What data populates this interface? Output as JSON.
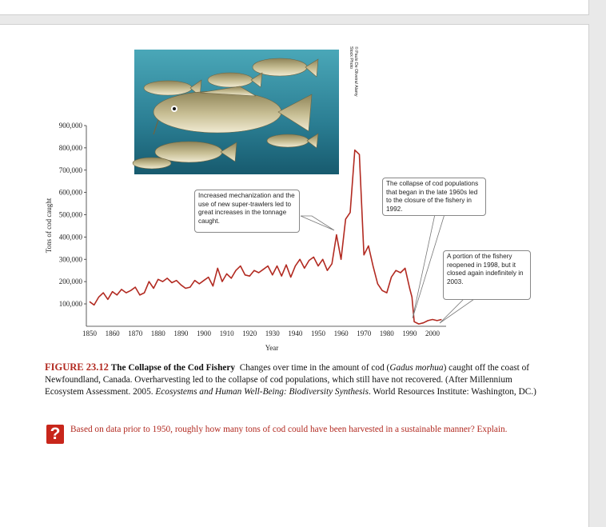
{
  "figure": {
    "number": "FIGURE 23.12",
    "title": "The Collapse of the Cod Fishery",
    "caption_part1": "Changes over time in the amount of cod (",
    "caption_species": "Gadus morhua",
    "caption_part2": ") caught off the coast of Newfoundland, Canada. Overharvesting led to the collapse of cod populations, which still have not recovered. (After Millennium Ecosystem Assessment. 2005. ",
    "caption_source_title": "Ecosystems and Human Well-Being: Biodiversity Synthesis",
    "caption_part3": ". World Resources Institute: Washington, DC.)",
    "photo_credit": "© Paulo De Oliveira/ Alamy Stock Photo"
  },
  "question": {
    "icon_text": "?",
    "text": "Based on data prior to 1950, roughly how many tons of cod could have been harvested in a sustainable manner? Explain."
  },
  "callouts": {
    "mechanization": "Increased mechanization and the use of new super-trawlers led to great increases in the tonnage caught.",
    "collapse": "The collapse of cod populations that began in the late 1960s led to the closure of the fishery in 1992.",
    "reopened": "A portion of the fishery reopened in 1998, but it closed again indefinitely in 2003."
  },
  "chart_data": {
    "type": "line",
    "xlabel": "Year",
    "ylabel": "Tons of cod caught",
    "xlim": [
      1850,
      2005
    ],
    "ylim": [
      0,
      900000
    ],
    "x_ticks": [
      "1850",
      "1860",
      "1870",
      "1880",
      "1890",
      "1900",
      "1910",
      "1920",
      "1930",
      "1940",
      "1950",
      "1960",
      "1970",
      "1980",
      "1990",
      "2000"
    ],
    "y_ticks": [
      "100,000",
      "200,000",
      "300,000",
      "400,000",
      "500,000",
      "600,000",
      "700,000",
      "800,000",
      "900,000"
    ],
    "line_color": "#b22a21",
    "x": [
      1850,
      1852,
      1854,
      1856,
      1858,
      1860,
      1862,
      1864,
      1866,
      1868,
      1870,
      1872,
      1874,
      1876,
      1878,
      1880,
      1882,
      1884,
      1886,
      1888,
      1890,
      1892,
      1894,
      1896,
      1898,
      1900,
      1902,
      1904,
      1906,
      1908,
      1910,
      1912,
      1914,
      1916,
      1918,
      1920,
      1922,
      1924,
      1926,
      1928,
      1930,
      1932,
      1934,
      1936,
      1938,
      1940,
      1942,
      1944,
      1946,
      1948,
      1950,
      1952,
      1954,
      1956,
      1958,
      1960,
      1962,
      1964,
      1966,
      1968,
      1970,
      1972,
      1974,
      1976,
      1978,
      1980,
      1982,
      1984,
      1986,
      1988,
      1990,
      1991,
      1992,
      1994,
      1996,
      1998,
      2000,
      2002,
      2004
    ],
    "y": [
      110000,
      95000,
      130000,
      150000,
      120000,
      155000,
      140000,
      165000,
      150000,
      160000,
      175000,
      140000,
      150000,
      200000,
      170000,
      210000,
      200000,
      215000,
      195000,
      205000,
      185000,
      170000,
      175000,
      205000,
      190000,
      205000,
      220000,
      180000,
      260000,
      200000,
      235000,
      215000,
      250000,
      270000,
      230000,
      225000,
      250000,
      240000,
      255000,
      270000,
      230000,
      270000,
      225000,
      275000,
      220000,
      270000,
      300000,
      260000,
      295000,
      310000,
      270000,
      300000,
      250000,
      280000,
      410000,
      300000,
      480000,
      510000,
      790000,
      770000,
      320000,
      360000,
      270000,
      190000,
      160000,
      150000,
      220000,
      250000,
      240000,
      260000,
      170000,
      130000,
      20000,
      10000,
      15000,
      25000,
      30000,
      25000,
      30000
    ]
  }
}
